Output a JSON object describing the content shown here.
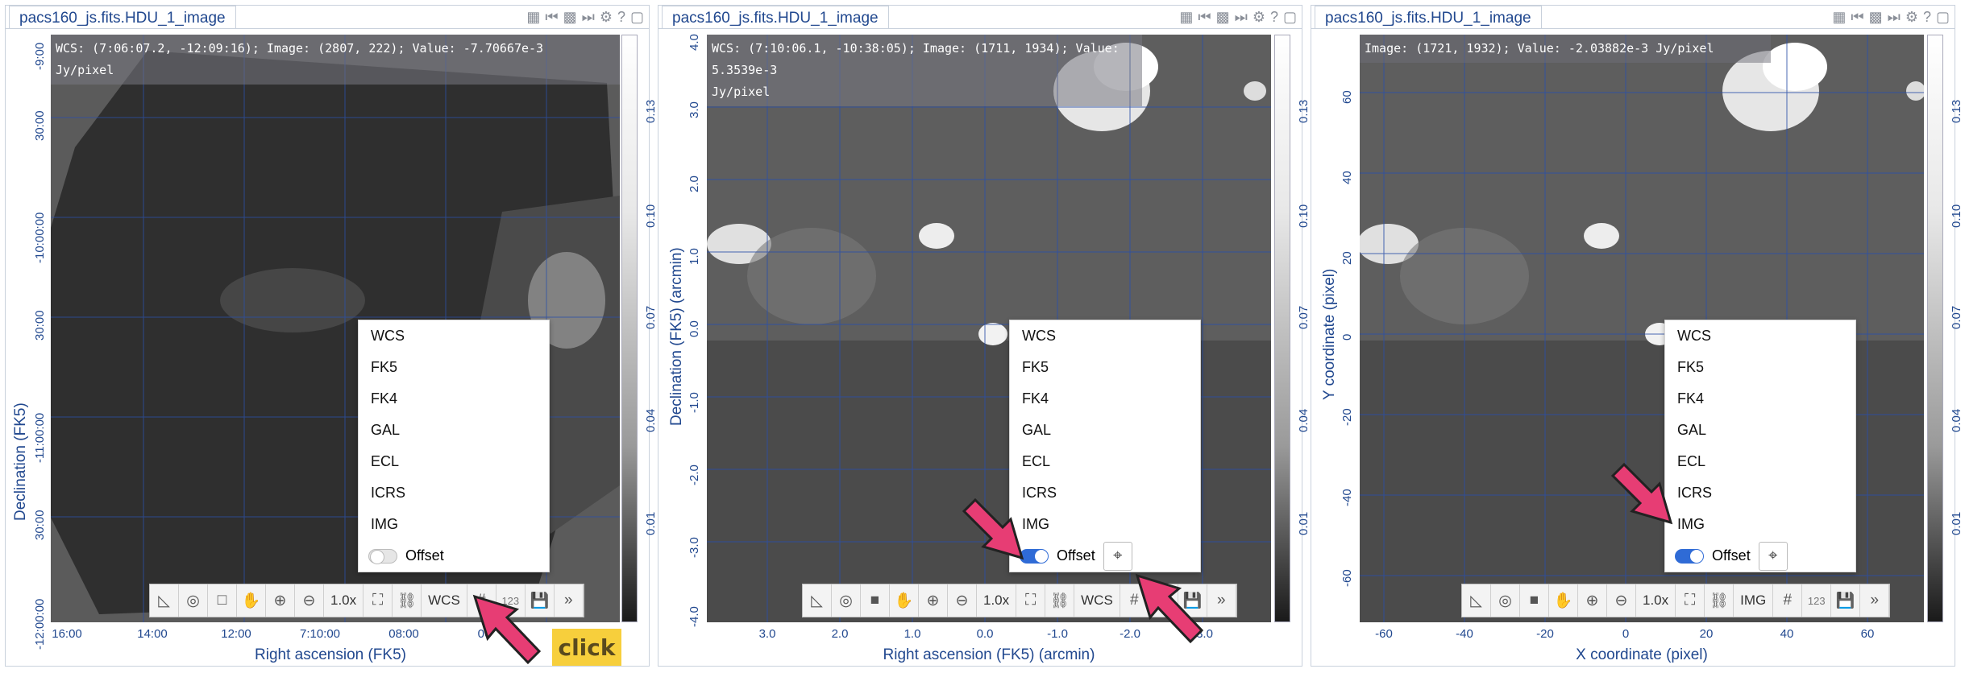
{
  "accent_color": "#e73d74",
  "panels": [
    {
      "tab_title": "pacs160_js.fits.HDU_1_image",
      "readout": "WCS: (7:06:07.2, -12:09:16); Image: (2807, 222); Value: -7.70667e-3\nJy/pixel",
      "y_axis_label": "Declination (FK5)",
      "x_axis_label": "Right ascension (FK5)",
      "y_ticks": [
        "-9:00",
        "30:00",
        "-10:00:00",
        "30:00",
        "-11:00:00",
        "30:00",
        "-12:00:00"
      ],
      "x_ticks": [
        "16:00",
        "14:00",
        "12:00",
        "7:10:00",
        "08:00",
        "06"
      ],
      "colorbar_ticks": [
        "0.13",
        "0.10",
        "0.07",
        "0.04",
        "0.01"
      ],
      "menu_items": [
        "WCS",
        "FK5",
        "FK4",
        "GAL",
        "ECL",
        "ICRS",
        "IMG"
      ],
      "offset_label": "Offset",
      "offset_enabled": false,
      "toolbar": {
        "zoom": "1.0x",
        "coord": "WCS",
        "num": "123"
      },
      "callout": "click"
    },
    {
      "tab_title": "pacs160_js.fits.HDU_1_image",
      "readout": "WCS: (7:10:06.1, -10:38:05); Image: (1711, 1934); Value:  5.3539e-3\nJy/pixel",
      "y_axis_label": "Declination (FK5) (arcmin)",
      "x_axis_label": "Right ascension (FK5) (arcmin)",
      "y_ticks": [
        "4.0",
        "3.0",
        "2.0",
        "1.0",
        "0.0",
        "-1.0",
        "-2.0",
        "-3.0",
        "-4.0"
      ],
      "x_ticks": [
        "3.0",
        "2.0",
        "1.0",
        "0.0",
        "-1.0",
        "-2.0",
        "-3.0"
      ],
      "colorbar_ticks": [
        "0.13",
        "0.10",
        "0.07",
        "0.04",
        "0.01"
      ],
      "menu_items": [
        "WCS",
        "FK5",
        "FK4",
        "GAL",
        "ECL",
        "ICRS",
        "IMG"
      ],
      "offset_label": "Offset",
      "offset_enabled": true,
      "toolbar": {
        "zoom": "1.0x",
        "coord": "WCS",
        "num": "123"
      }
    },
    {
      "tab_title": "pacs160_js.fits.HDU_1_image",
      "readout": "Image: (1721, 1932); Value: -2.03882e-3 Jy/pixel",
      "y_axis_label": "Y coordinate (pixel)",
      "x_axis_label": "X coordinate (pixel)",
      "y_ticks": [
        "60",
        "40",
        "20",
        "0",
        "-20",
        "-40",
        "-60"
      ],
      "x_ticks": [
        "-60",
        "-40",
        "-20",
        "0",
        "20",
        "40",
        "60"
      ],
      "colorbar_ticks": [
        "0.13",
        "0.10",
        "0.07",
        "0.04",
        "0.01"
      ],
      "menu_items": [
        "WCS",
        "FK5",
        "FK4",
        "GAL",
        "ECL",
        "ICRS",
        "IMG"
      ],
      "offset_label": "Offset",
      "offset_enabled": true,
      "toolbar": {
        "zoom": "1.0x",
        "coord": "IMG",
        "num": "123"
      }
    }
  ]
}
